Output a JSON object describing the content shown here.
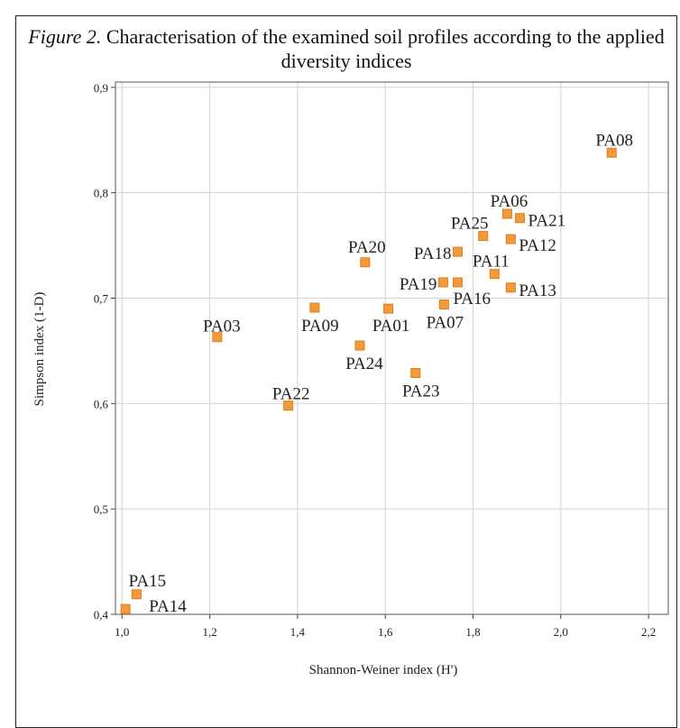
{
  "chart_data": {
    "type": "scatter",
    "title_prefix": "Figure 2.",
    "title": "Characterisation of the examined soil profiles according to the applied diversity indices",
    "xlabel": "Shannon-Weiner index (H')",
    "ylabel": "Simpson index (1-D)",
    "color": "#f39a3c",
    "grid": true,
    "xlim": [
      0.985,
      2.245
    ],
    "ylim": [
      0.4,
      0.905
    ],
    "xticks": [
      {
        "value": 1.0,
        "label": "1,0"
      },
      {
        "value": 1.2,
        "label": "1,2"
      },
      {
        "value": 1.4,
        "label": "1,4"
      },
      {
        "value": 1.6,
        "label": "1,6"
      },
      {
        "value": 1.8,
        "label": "1,8"
      },
      {
        "value": 2.0,
        "label": "2,0"
      },
      {
        "value": 2.2,
        "label": "2,2"
      }
    ],
    "yticks": [
      {
        "value": 0.4,
        "label": "0,4"
      },
      {
        "value": 0.5,
        "label": "0,5"
      },
      {
        "value": 0.6,
        "label": "0,6"
      },
      {
        "value": 0.7,
        "label": "0,7"
      },
      {
        "value": 0.8,
        "label": "0,8"
      },
      {
        "value": 0.9,
        "label": "0,9"
      }
    ],
    "labels": [
      "PA08",
      "PA06",
      "PA21",
      "PA25",
      "PA12",
      "PA18",
      "PA20",
      "PA11",
      "PA19",
      "PA16",
      "PA13",
      "PA07",
      "PA09",
      "PA01",
      "PA03",
      "PA24",
      "PA23",
      "PA22",
      "PA15",
      "PA14"
    ],
    "x": [
      2.116,
      1.878,
      1.907,
      1.823,
      1.886,
      1.765,
      1.554,
      1.849,
      1.732,
      1.765,
      1.886,
      1.734,
      1.439,
      1.607,
      1.217,
      1.542,
      1.669,
      1.379,
      1.033,
      1.008
    ],
    "y": [
      0.838,
      0.78,
      0.776,
      0.759,
      0.756,
      0.744,
      0.734,
      0.723,
      0.715,
      0.715,
      0.71,
      0.694,
      0.691,
      0.69,
      0.663,
      0.655,
      0.629,
      0.598,
      0.419,
      0.405
    ]
  }
}
